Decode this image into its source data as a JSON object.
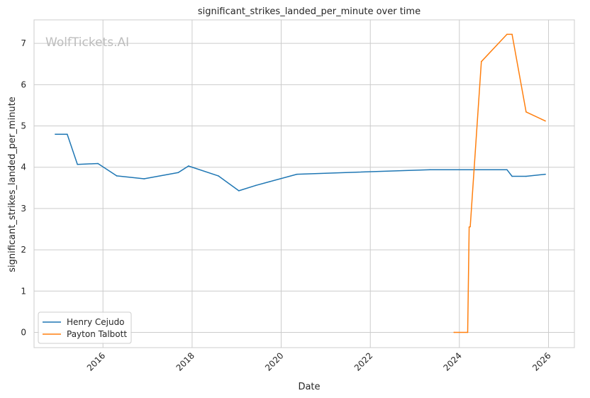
{
  "watermark": "WolfTickets.AI",
  "chart_data": {
    "type": "line",
    "title": "significant_strikes_landed_per_minute over time",
    "xlabel": "Date",
    "ylabel": "significant_strikes_landed_per_minute",
    "x_is_date": true,
    "xlim": [
      "2014-06-15",
      "2026-08-01"
    ],
    "ylim": [
      -0.37,
      7.57
    ],
    "x_ticks": [
      "2016",
      "2018",
      "2020",
      "2022",
      "2024",
      "2026"
    ],
    "y_ticks": [
      0,
      1,
      2,
      3,
      4,
      5,
      6,
      7
    ],
    "grid": true,
    "legend_position": "lower-left",
    "series": [
      {
        "name": "Henry Cejudo",
        "color": "#1f77b4",
        "points": [
          [
            "2014-12-06",
            4.8
          ],
          [
            "2015-03-14",
            4.8
          ],
          [
            "2015-06-06",
            4.07
          ],
          [
            "2015-11-21",
            4.09
          ],
          [
            "2016-04-23",
            3.79
          ],
          [
            "2016-12-03",
            3.72
          ],
          [
            "2017-09-09",
            3.87
          ],
          [
            "2017-12-02",
            4.03
          ],
          [
            "2018-08-04",
            3.79
          ],
          [
            "2019-01-19",
            3.43
          ],
          [
            "2019-06-08",
            3.56
          ],
          [
            "2020-05-09",
            3.83
          ],
          [
            "2023-05-06",
            3.94
          ],
          [
            "2025-01-25",
            3.94
          ],
          [
            "2025-03-08",
            3.78
          ],
          [
            "2025-07-01",
            3.78
          ],
          [
            "2025-12-06",
            3.83
          ]
        ]
      },
      {
        "name": "Payton Talbott",
        "color": "#ff7f0e",
        "points": [
          [
            "2023-11-18",
            0.0
          ],
          [
            "2024-03-09",
            0.0
          ],
          [
            "2024-03-21",
            2.55
          ],
          [
            "2024-03-30",
            2.56
          ],
          [
            "2024-06-29",
            6.56
          ],
          [
            "2025-01-25",
            7.22
          ],
          [
            "2025-03-08",
            7.22
          ],
          [
            "2025-07-01",
            5.34
          ],
          [
            "2025-12-06",
            5.12
          ]
        ]
      }
    ]
  }
}
